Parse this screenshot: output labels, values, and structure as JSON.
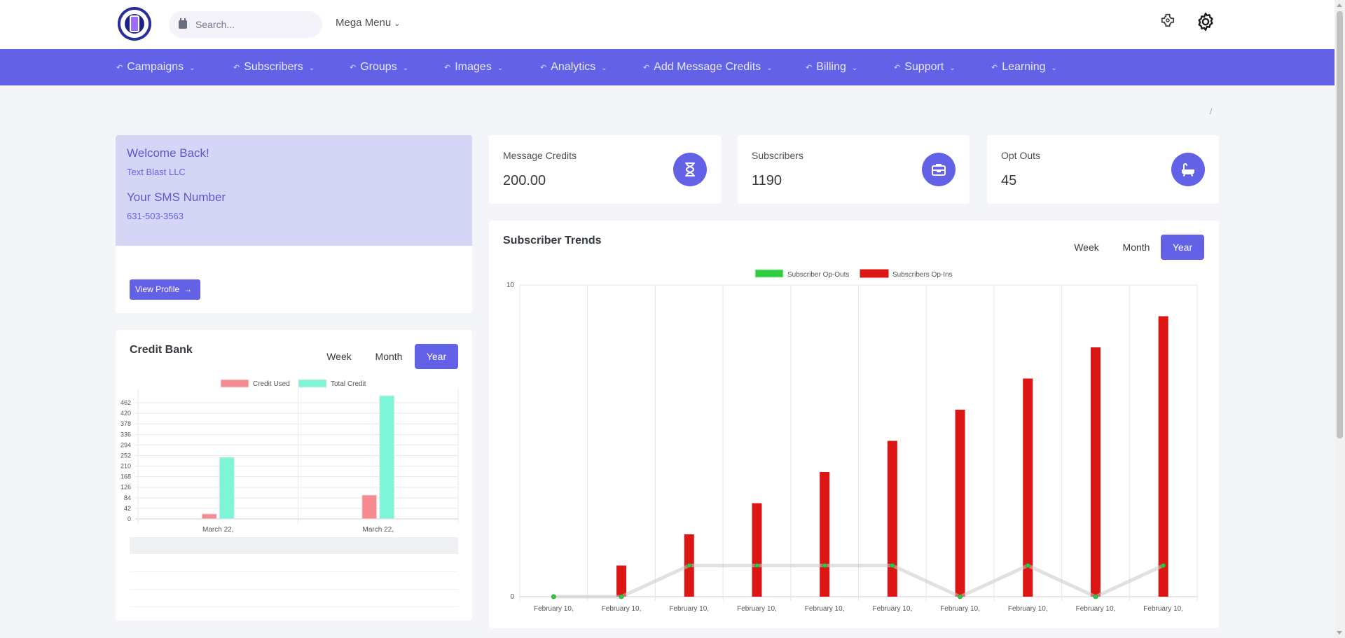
{
  "header": {
    "search_placeholder": "Search...",
    "mega_menu_label": "Mega Menu",
    "icons": [
      "logo",
      "calendar-icon",
      "chevron-down-icon",
      "puzzle-icon",
      "gear-icon"
    ]
  },
  "nav": {
    "items": [
      {
        "label": "Campaigns"
      },
      {
        "label": "Subscribers"
      },
      {
        "label": "Groups"
      },
      {
        "label": "Images"
      },
      {
        "label": "Analytics"
      },
      {
        "label": "Add Message Credits"
      },
      {
        "label": "Billing"
      },
      {
        "label": "Support"
      },
      {
        "label": "Learning"
      }
    ],
    "item_icon": "reply-arrow-icon",
    "background": "#6362e7"
  },
  "breadcrumb": {
    "separator": "/"
  },
  "welcome": {
    "title": "Welcome Back!",
    "company": "Text Blast LLC",
    "sms_title": "Your SMS Number",
    "sms_number": "631-503-3563",
    "button_label": "View Profile"
  },
  "stats": [
    {
      "label": "Message Credits",
      "value": "200.00",
      "icon": "hourglass-icon"
    },
    {
      "label": "Subscribers",
      "value": "1190",
      "icon": "briefcase-icon"
    },
    {
      "label": "Opt Outs",
      "value": "45",
      "icon": "bathtub-icon"
    }
  ],
  "periods": {
    "week": "Week",
    "month": "Month",
    "year": "Year",
    "active": "Year"
  },
  "subscriber_trends": {
    "title": "Subscriber Trends"
  },
  "credit_bank": {
    "title": "Credit Bank"
  },
  "colors": {
    "accent": "#6362e7",
    "opt_in_bar": "#dc1515",
    "opt_out_marker": "#2ecc40",
    "credit_used": "#f78a8f",
    "total_credit": "#7ff5d7"
  },
  "chart_data": [
    {
      "type": "bar",
      "legend": [
        "Subscriber Op-Outs",
        "Subscribers Op-Ins"
      ],
      "legend_position": "top",
      "categories": [
        "February 10,",
        "February 10,",
        "February 10,",
        "February 10,",
        "February 10,",
        "February 10,",
        "February 10,",
        "February 10,",
        "February 10,",
        "February 10,"
      ],
      "series": [
        {
          "name": "Subscriber Op-Outs",
          "kind": "line",
          "values": [
            0,
            0,
            1,
            1,
            1,
            1,
            0,
            1,
            0,
            1
          ]
        },
        {
          "name": "Subscribers Op-Ins",
          "kind": "bar",
          "values": [
            0,
            1,
            2,
            3,
            4,
            5,
            6,
            7,
            8,
            9
          ]
        }
      ],
      "y_ticks": [
        "0",
        "10"
      ],
      "ylim": [
        0,
        10
      ],
      "grid": true
    },
    {
      "type": "bar",
      "legend": [
        "Credit Used",
        "Total Credit"
      ],
      "legend_position": "top",
      "categories": [
        "March 22,",
        "March 22,"
      ],
      "series": [
        {
          "name": "Credit Used",
          "values": [
            20,
            95
          ]
        },
        {
          "name": "Total Credit",
          "values": [
            245,
            490
          ]
        }
      ],
      "y_ticks": [
        "0",
        "42",
        "84",
        "126",
        "168",
        "210",
        "252",
        "294",
        "336",
        "378",
        "420",
        "462"
      ],
      "ylim": [
        0,
        490
      ],
      "grid": true
    }
  ]
}
